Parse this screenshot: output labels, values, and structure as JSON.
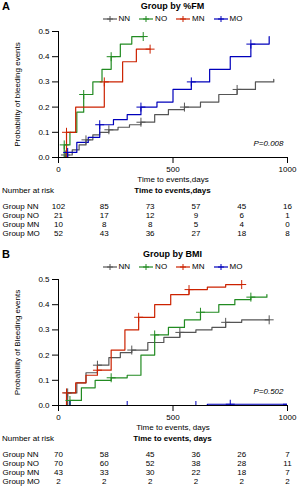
{
  "chart_data": [
    {
      "type": "step",
      "panel": "A",
      "title": "Group by %FM",
      "xlabel": "Time to events,days",
      "ylabel": "Probability of bleeding events",
      "annotations": [
        "P=0.008"
      ],
      "xlim": [
        0,
        1000
      ],
      "ylim": [
        0,
        0.5
      ],
      "xticks": [
        0,
        500,
        1000
      ],
      "yticks": [
        {
          "value": 0.0,
          "label": "0.0"
        },
        0.1,
        0.2,
        0.3,
        0.4,
        0.5
      ],
      "grid": false,
      "legend": "top",
      "marker": "+",
      "line_style": "solid",
      "series": [
        {
          "name": "NN",
          "color": "#555555",
          "x": [
            0,
            30,
            60,
            90,
            120,
            150,
            180,
            220,
            260,
            310,
            360,
            420,
            480,
            550,
            620,
            700,
            780,
            860,
            940
          ],
          "values": [
            0.0,
            0.01,
            0.03,
            0.05,
            0.07,
            0.09,
            0.1,
            0.11,
            0.12,
            0.13,
            0.14,
            0.17,
            0.19,
            0.2,
            0.22,
            0.25,
            0.27,
            0.3,
            0.31
          ]
        },
        {
          "name": "NO",
          "color": "#228B22",
          "x": [
            0,
            25,
            50,
            80,
            110,
            150,
            190,
            230,
            270,
            320,
            370
          ],
          "values": [
            0.0,
            0.05,
            0.1,
            0.18,
            0.25,
            0.3,
            0.35,
            0.4,
            0.45,
            0.48,
            0.48
          ]
        },
        {
          "name": "MN",
          "color": "#CC2200",
          "x": [
            0,
            35,
            75,
            130,
            200,
            280,
            340,
            400
          ],
          "values": [
            0.0,
            0.1,
            0.2,
            0.2,
            0.3,
            0.38,
            0.43,
            0.43
          ]
        },
        {
          "name": "MO",
          "color": "#0000BB",
          "x": [
            0,
            40,
            80,
            130,
            180,
            240,
            300,
            360,
            430,
            500,
            580,
            660,
            750,
            840,
            920
          ],
          "values": [
            0.0,
            0.02,
            0.06,
            0.08,
            0.13,
            0.15,
            0.17,
            0.2,
            0.22,
            0.27,
            0.3,
            0.35,
            0.4,
            0.45,
            0.48
          ]
        }
      ],
      "risk_table": {
        "title": "Number at risk",
        "xlabel": "Time to events,days",
        "x": [
          0,
          200,
          400,
          600,
          800,
          1000
        ],
        "rows": [
          {
            "name": "Group NN",
            "values": [
              102,
              85,
              73,
              57,
              45,
              16
            ]
          },
          {
            "name": "Group NO",
            "values": [
              21,
              17,
              12,
              9,
              6,
              1
            ]
          },
          {
            "name": "Group MN",
            "values": [
              10,
              8,
              8,
              5,
              4,
              0
            ]
          },
          {
            "name": "Group MO",
            "values": [
              52,
              43,
              36,
              27,
              18,
              8
            ]
          }
        ]
      }
    },
    {
      "type": "step",
      "panel": "B",
      "title": "Group by BMI",
      "xlabel": "Time to events, days",
      "ylabel": "Probability of Bleeding events",
      "annotations": [
        "P=0.502"
      ],
      "xlim": [
        0,
        1000
      ],
      "ylim": [
        0,
        0.5
      ],
      "xticks": [
        0,
        500,
        1000
      ],
      "yticks": [
        {
          "value": 0.0,
          "label": "0.0"
        },
        0.1,
        0.2,
        0.3,
        0.4,
        0.5
      ],
      "grid": false,
      "legend": "top",
      "marker": "+",
      "line_style": "solid",
      "series": [
        {
          "name": "NN",
          "color": "#555555",
          "x": [
            0,
            40,
            80,
            120,
            170,
            220,
            270,
            320,
            390,
            460,
            530,
            600,
            670,
            730,
            800,
            860,
            920
          ],
          "values": [
            0.0,
            0.05,
            0.09,
            0.13,
            0.16,
            0.19,
            0.21,
            0.22,
            0.25,
            0.27,
            0.29,
            0.3,
            0.31,
            0.33,
            0.34,
            0.34,
            0.34
          ]
        },
        {
          "name": "NO",
          "color": "#228B22",
          "x": [
            0,
            50,
            100,
            160,
            230,
            300,
            360,
            420,
            480,
            550,
            620,
            700,
            770,
            840,
            910
          ],
          "values": [
            0.0,
            0.02,
            0.07,
            0.1,
            0.11,
            0.12,
            0.2,
            0.28,
            0.31,
            0.34,
            0.37,
            0.4,
            0.42,
            0.43,
            0.44
          ]
        },
        {
          "name": "MN",
          "color": "#CC2200",
          "x": [
            0,
            35,
            75,
            120,
            170,
            230,
            290,
            350,
            420,
            490,
            570,
            650,
            730,
            800
          ],
          "values": [
            0.0,
            0.05,
            0.09,
            0.12,
            0.14,
            0.22,
            0.3,
            0.35,
            0.4,
            0.44,
            0.46,
            0.47,
            0.48,
            0.48
          ]
        },
        {
          "name": "MO",
          "color": "#0000BB",
          "x": [
            0,
            50,
            100,
            200,
            300,
            400,
            500,
            600,
            650,
            700,
            750,
            800,
            900,
            1000
          ],
          "values": [
            0.0,
            0.0,
            0.0,
            0.0,
            0.0,
            0.0,
            0.0,
            0.0,
            0.005,
            0.005,
            0.005,
            0.005,
            0.005,
            0.005
          ]
        }
      ],
      "risk_table": {
        "title": "Number at risk",
        "xlabel": "Time to events, days",
        "x": [
          0,
          200,
          400,
          600,
          800,
          1000
        ],
        "rows": [
          {
            "name": "Group NN",
            "values": [
              70,
              58,
              45,
              36,
              26,
              7
            ]
          },
          {
            "name": "Group NO",
            "values": [
              70,
              60,
              52,
              38,
              28,
              11
            ]
          },
          {
            "name": "Group MN",
            "values": [
              43,
              33,
              30,
              22,
              18,
              7
            ]
          },
          {
            "name": "Group MO",
            "values": [
              2,
              2,
              2,
              2,
              2,
              2
            ]
          }
        ]
      }
    }
  ]
}
